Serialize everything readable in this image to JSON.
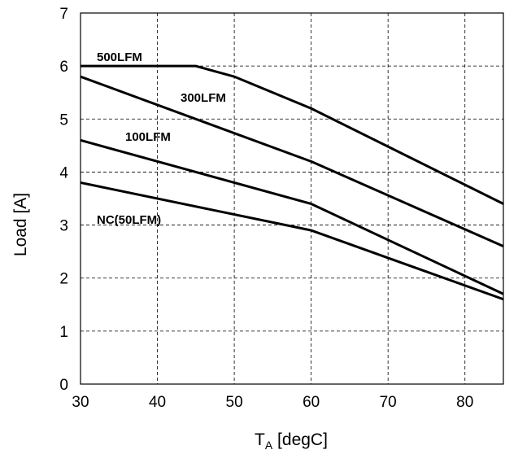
{
  "chart_data": {
    "type": "line",
    "title": "",
    "xlabel_main": "T",
    "xlabel_sub": "A",
    "xlabel_rest": " [degC]",
    "ylabel": "Load [A]",
    "xlim": [
      30,
      85
    ],
    "ylim": [
      0,
      7
    ],
    "xticks": [
      "30",
      "40",
      "50",
      "60",
      "70",
      "80"
    ],
    "yticks": [
      "0",
      "1",
      "2",
      "3",
      "4",
      "5",
      "6",
      "7"
    ],
    "grid": true,
    "series": [
      {
        "name": "500LFM",
        "x": [
          30,
          45,
          50,
          60,
          85
        ],
        "y": [
          6.0,
          6.0,
          5.8,
          5.2,
          3.4
        ]
      },
      {
        "name": "300LFM",
        "x": [
          30,
          60,
          85
        ],
        "y": [
          5.8,
          4.2,
          2.6
        ]
      },
      {
        "name": "100LFM",
        "x": [
          30,
          60,
          85
        ],
        "y": [
          4.6,
          3.4,
          1.7
        ]
      },
      {
        "name": "NC(50LFM)",
        "x": [
          30,
          60,
          85
        ],
        "y": [
          3.8,
          2.9,
          1.6
        ]
      }
    ]
  }
}
